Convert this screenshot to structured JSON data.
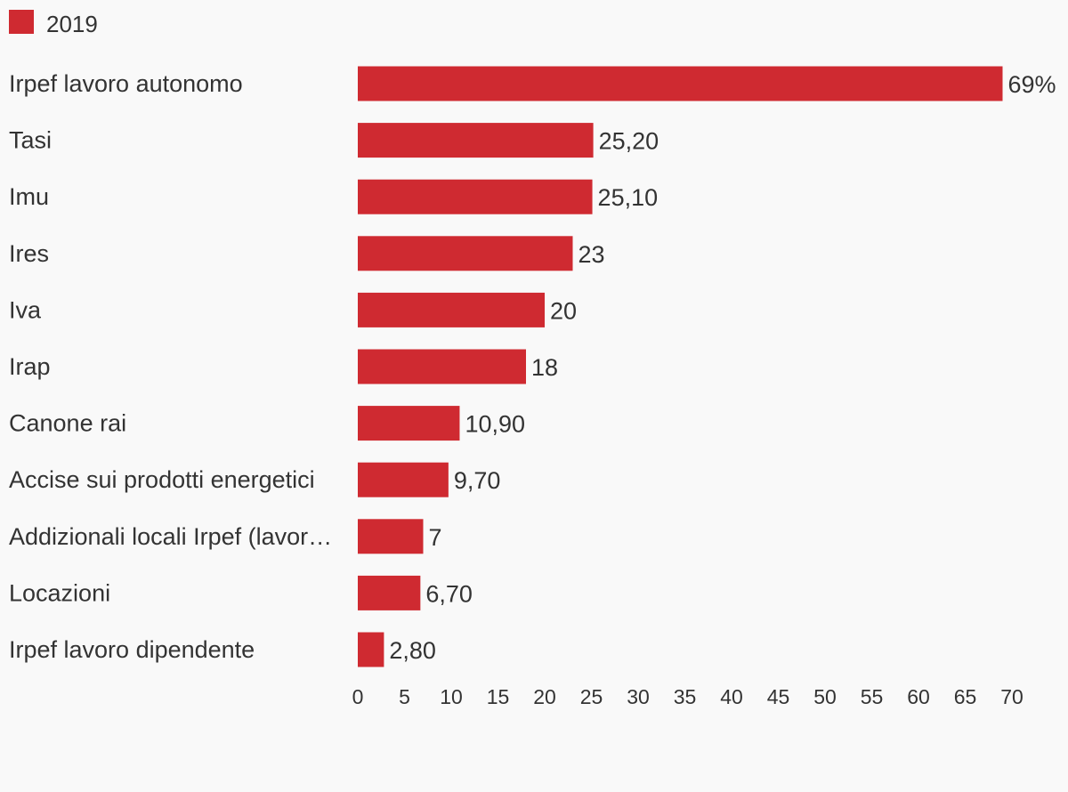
{
  "chart_data": {
    "type": "bar",
    "orientation": "horizontal",
    "series": [
      {
        "name": "2019",
        "color": "#cf2a31",
        "values": [
          69,
          25.2,
          25.1,
          23,
          20,
          18,
          10.9,
          9.7,
          7,
          6.7,
          2.8
        ],
        "value_labels": [
          "69%",
          "25,20",
          "25,10",
          "23",
          "20",
          "18",
          "10,90",
          "9,70",
          "7",
          "6,70",
          "2,80"
        ]
      }
    ],
    "categories": [
      "Irpef lavoro autonomo",
      "Tasi",
      "Imu",
      "Ires",
      "Iva",
      "Irap",
      "Canone rai",
      "Accise sui prodotti energetici",
      "Addizionali locali Irpef (lavor…",
      "Locazioni",
      "Irpef lavoro dipendente"
    ],
    "xlim": [
      0,
      70
    ],
    "xticks": [
      0,
      5,
      10,
      15,
      20,
      25,
      30,
      35,
      40,
      45,
      50,
      55,
      60,
      65,
      70
    ],
    "grid": false,
    "legend_position": "top-left"
  }
}
